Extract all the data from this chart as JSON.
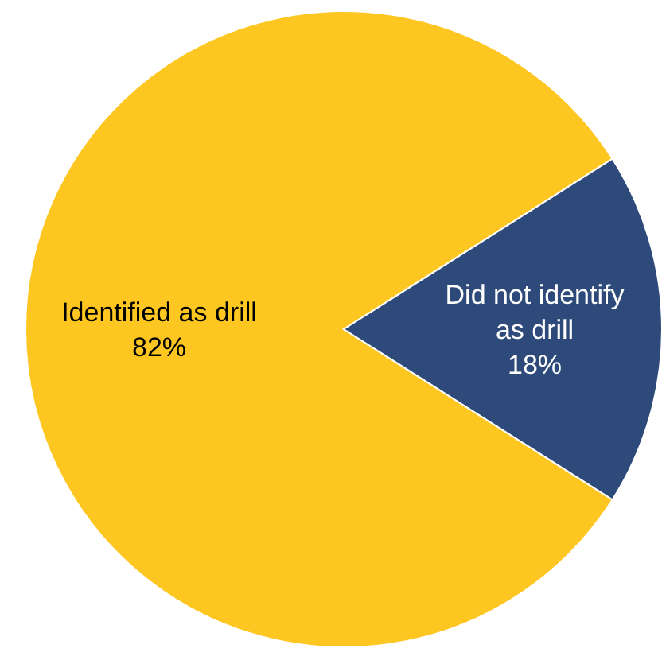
{
  "chart_data": {
    "type": "pie",
    "categories": [
      "Identified as drill",
      "Did not identify as drill"
    ],
    "values": [
      82,
      18
    ],
    "colors": [
      "#fdc621",
      "#2e4a7a"
    ],
    "value_labels": [
      "82%",
      "18%"
    ]
  }
}
